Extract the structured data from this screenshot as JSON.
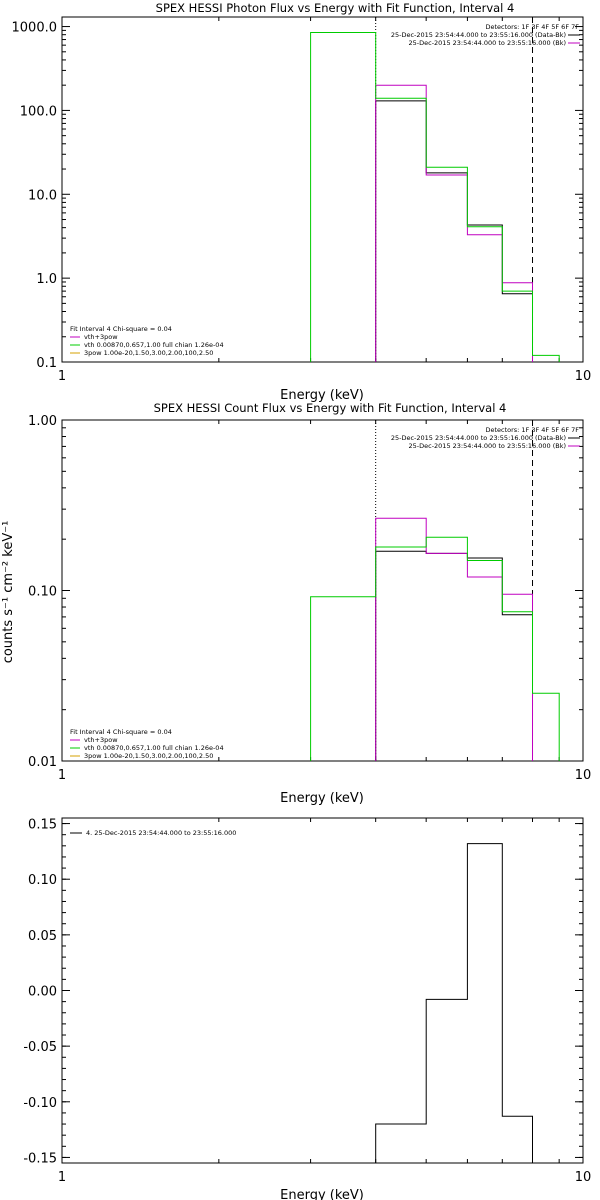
{
  "chart_data": [
    {
      "type": "line",
      "step": true,
      "title": "SPEX HESSI Photon Flux vs Energy with Fit Function, Interval 4",
      "xlabel": "Energy (keV)",
      "ylabel": "",
      "xscale": "log",
      "yscale": "log",
      "xlim": [
        1,
        10
      ],
      "ylim": [
        0.1,
        1300
      ],
      "x_ticks": [
        {
          "v": 1,
          "label": "1"
        },
        {
          "v": 10,
          "label": "10"
        }
      ],
      "y_ticks": [
        {
          "v": 0.1,
          "label": "0.1"
        },
        {
          "v": 1,
          "label": "1.0"
        },
        {
          "v": 10,
          "label": "10.0"
        },
        {
          "v": 100,
          "label": "100.0"
        },
        {
          "v": 1000,
          "label": "1000.0"
        }
      ],
      "header_lines": [
        "Detectors: 1F 3F 4F 5F 6F 7F",
        "25-Dec-2015 23:54:44.000 to 23:55:16.000 (Data-Bk)",
        "25-Dec-2015 23:54:44.000 to 23:55:16.000 (Bk)"
      ],
      "header_colors": [
        "#000000",
        "#c000c0"
      ],
      "fit_info": [
        {
          "text": "Fit Interval 4   Chi-square = 0.04",
          "color": ""
        },
        {
          "text": "vth+3pow",
          "color": "#c000c0"
        },
        {
          "text": "vth 0.00870,0.657,1.00  full chian 1.26e-04",
          "color": "#00cc00"
        },
        {
          "text": "3pow 1.00e-20,1.50,3.00,2.00,100,2.50",
          "color": "#d4a000"
        }
      ],
      "vlines": [
        {
          "x": 4.0,
          "style": "dotted",
          "color": "#000000"
        },
        {
          "x": 8.0,
          "style": "dashed",
          "color": "#000000"
        }
      ],
      "series": [
        {
          "color": "#000000",
          "edges": [
            4,
            5,
            6,
            7,
            8
          ],
          "values": [
            130,
            18,
            4.3,
            0.65
          ]
        },
        {
          "color": "#c000c0",
          "edges": [
            4,
            5,
            6,
            7,
            8
          ],
          "values": [
            200,
            17,
            3.3,
            0.88
          ]
        },
        {
          "color": "#00cc00",
          "edges": [
            3,
            4,
            5,
            6,
            7,
            8,
            9
          ],
          "values": [
            850,
            140,
            21,
            4.1,
            0.7,
            0.12
          ]
        }
      ]
    },
    {
      "type": "line",
      "step": true,
      "title": "SPEX HESSI Count Flux vs Energy with Fit Function, Interval 4",
      "xlabel": "Energy (keV)",
      "ylabel": "counts s⁻¹ cm⁻² keV⁻¹",
      "xscale": "log",
      "yscale": "log",
      "xlim": [
        1,
        10
      ],
      "ylim": [
        0.01,
        1.0
      ],
      "x_ticks": [
        {
          "v": 1,
          "label": "1"
        },
        {
          "v": 10,
          "label": "10"
        }
      ],
      "y_ticks": [
        {
          "v": 0.01,
          "label": "0.01"
        },
        {
          "v": 0.1,
          "label": "0.10"
        },
        {
          "v": 1,
          "label": "1.00"
        }
      ],
      "header_lines": [
        "Detectors: 1F 3F 4F 5F 6F 7F",
        "25-Dec-2015 23:54:44.000 to 23:55:16.000 (Data-Bk)",
        "25-Dec-2015 23:54:44.000 to 23:55:16.000 (Bk)"
      ],
      "header_colors": [
        "#000000",
        "#c000c0"
      ],
      "fit_info": [
        {
          "text": "Fit Interval 4   Chi-square = 0.04",
          "color": ""
        },
        {
          "text": "vth+3pow",
          "color": "#c000c0"
        },
        {
          "text": "vth 0.00870,0.657,1.00  full chian 1.26e-04",
          "color": "#00cc00"
        },
        {
          "text": "3pow 1.00e-20,1.50,3.00,2.00,100,2.50",
          "color": "#d4a000"
        }
      ],
      "vlines": [
        {
          "x": 4.0,
          "style": "dotted",
          "color": "#000000"
        },
        {
          "x": 8.0,
          "style": "dashed",
          "color": "#000000"
        }
      ],
      "series": [
        {
          "color": "#000000",
          "edges": [
            4,
            5,
            6,
            7,
            8
          ],
          "values": [
            0.17,
            0.165,
            0.155,
            0.072
          ]
        },
        {
          "color": "#c000c0",
          "edges": [
            4,
            5,
            6,
            7,
            8
          ],
          "values": [
            0.265,
            0.165,
            0.12,
            0.095
          ]
        },
        {
          "color": "#00cc00",
          "edges": [
            3,
            4,
            5,
            6,
            7,
            8,
            9
          ],
          "values": [
            0.092,
            0.18,
            0.205,
            0.15,
            0.075,
            0.025
          ]
        }
      ]
    },
    {
      "type": "line",
      "step": true,
      "title": "",
      "xlabel": "Energy (keV)",
      "ylabel": "",
      "xscale": "log",
      "yscale": "linear",
      "xlim": [
        1,
        10
      ],
      "ylim": [
        -0.155,
        0.155
      ],
      "x_ticks": [
        {
          "v": 1,
          "label": "1"
        },
        {
          "v": 10,
          "label": "10"
        }
      ],
      "y_ticks": [
        {
          "v": -0.15,
          "label": "-0.15"
        },
        {
          "v": -0.1,
          "label": "-0.10"
        },
        {
          "v": -0.05,
          "label": "-0.05"
        },
        {
          "v": 0.0,
          "label": "0.00"
        },
        {
          "v": 0.05,
          "label": "0.05"
        },
        {
          "v": 0.1,
          "label": "0.10"
        },
        {
          "v": 0.15,
          "label": "0.15"
        }
      ],
      "legend": [
        {
          "text": "4. 25-Dec-2015 23:54:44.000 to 23:55:16.000",
          "color": "#000000"
        }
      ],
      "series": [
        {
          "color": "#000000",
          "edges": [
            4,
            5,
            6,
            7,
            8
          ],
          "values": [
            -0.12,
            -0.008,
            0.132,
            -0.113
          ]
        }
      ]
    }
  ]
}
